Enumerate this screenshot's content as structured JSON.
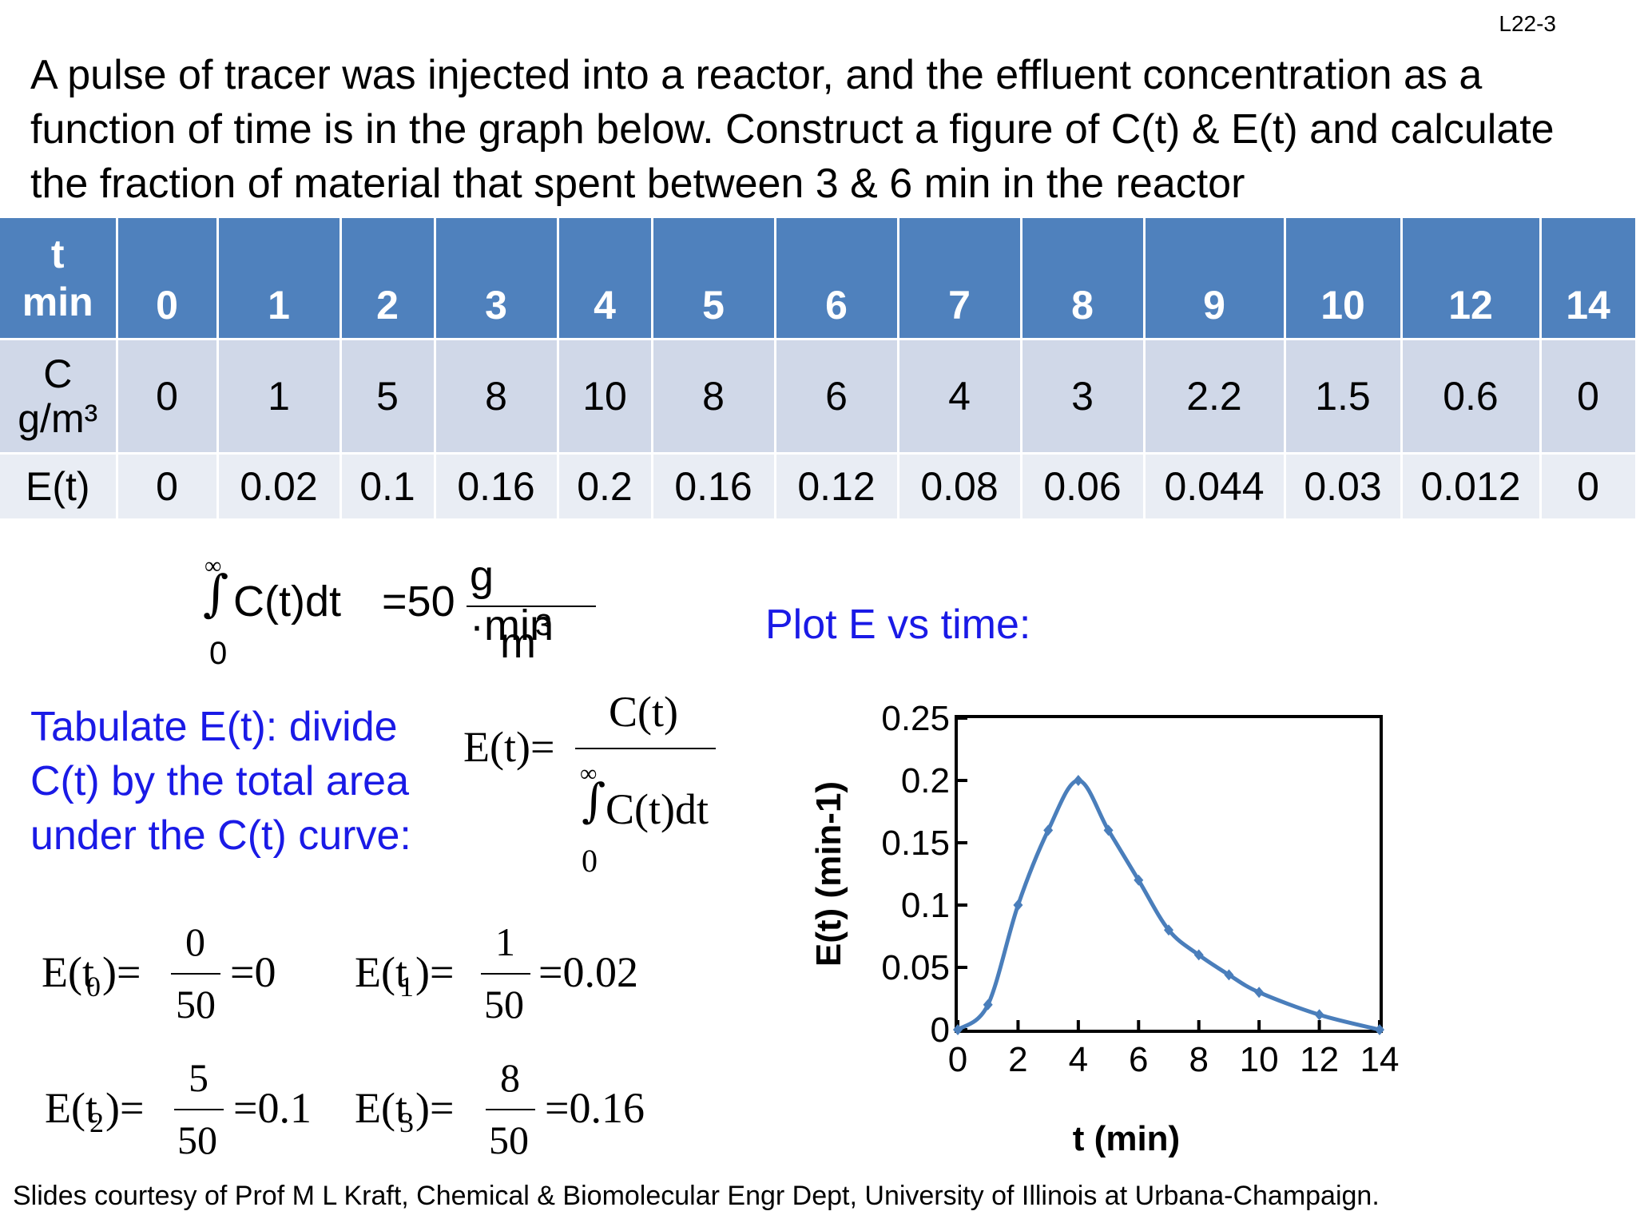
{
  "slide_id": "L22-3",
  "problem": "A pulse of tracer was injected into a reactor, and the effluent concentration as a function of time is in the graph below.  Construct a figure of C(t) & E(t) and calculate the fraction of material that spent between 3 & 6 min in the reactor",
  "table": {
    "row_t_label": [
      "t",
      "min"
    ],
    "row_c_label": [
      "C",
      "g/m³"
    ],
    "row_e_label": "E(t)",
    "t": [
      "0",
      "1",
      "2",
      "3",
      "4",
      "5",
      "6",
      "7",
      "8",
      "9",
      "10",
      "12",
      "14"
    ],
    "C": [
      "0",
      "1",
      "5",
      "8",
      "10",
      "8",
      "6",
      "4",
      "3",
      "2.2",
      "1.5",
      "0.6",
      "0"
    ],
    "E": [
      "0",
      "0.02",
      "0.1",
      "0.16",
      "0.2",
      "0.16",
      "0.12",
      "0.08",
      "0.06",
      "0.044",
      "0.03",
      "0.012",
      "0"
    ]
  },
  "integral_eq": {
    "upper": "∞",
    "lower": "0",
    "integrand": "C(t)dt",
    "equals": "=50",
    "num": "g ·min",
    "den": "m",
    "den_exp": "3"
  },
  "plot_label": "Plot E vs time:",
  "tabulate_note": [
    "Tabulate E(t): divide",
    "C(t) by the total area",
    "under the C(t) curve:"
  ],
  "e_def": {
    "lhs": "E(t)=",
    "num": "C(t)",
    "upper": "∞",
    "integrand": "C(t)dt",
    "lower": "0"
  },
  "examples": [
    {
      "E": "E(t",
      "sub": "0",
      "close": ")=",
      "num": "0",
      "den": "50",
      "res": "=0"
    },
    {
      "E": "E(t",
      "sub": "1",
      "close": ")=",
      "num": "1",
      "den": "50",
      "res": "=0.02"
    },
    {
      "E": "E(t",
      "sub": "2",
      "close": ")=",
      "num": "5",
      "den": "50",
      "res": "=0.1"
    },
    {
      "E": "E(t",
      "sub": "3",
      "close": ")=",
      "num": "8",
      "den": "50",
      "res": "=0.16"
    }
  ],
  "footer": "Slides courtesy of Prof M L Kraft, Chemical & Biomolecular Engr Dept, University of Illinois at Urbana-Champaign.",
  "chart_data": {
    "type": "line",
    "x": [
      0,
      1,
      2,
      3,
      4,
      5,
      6,
      7,
      8,
      9,
      10,
      12,
      14
    ],
    "series": [
      {
        "values": [
          0,
          0.02,
          0.1,
          0.16,
          0.2,
          0.16,
          0.12,
          0.08,
          0.06,
          0.044,
          0.03,
          0.012,
          0
        ]
      }
    ],
    "xlabel": "t (min)",
    "ylabel": "E(t) (min-1)",
    "xlim": [
      0,
      14
    ],
    "ylim": [
      0,
      0.25
    ],
    "xticks": [
      "0",
      "2",
      "4",
      "6",
      "8",
      "10",
      "12",
      "14"
    ],
    "xtick_values": [
      0,
      2,
      4,
      6,
      8,
      10,
      12,
      14
    ],
    "yticks": [
      "0",
      "0.05",
      "0.1",
      "0.15",
      "0.2",
      "0.25"
    ],
    "ytick_values": [
      0,
      0.05,
      0.1,
      0.15,
      0.2,
      0.25
    ],
    "grid": false,
    "color": "#4a7ebb"
  }
}
